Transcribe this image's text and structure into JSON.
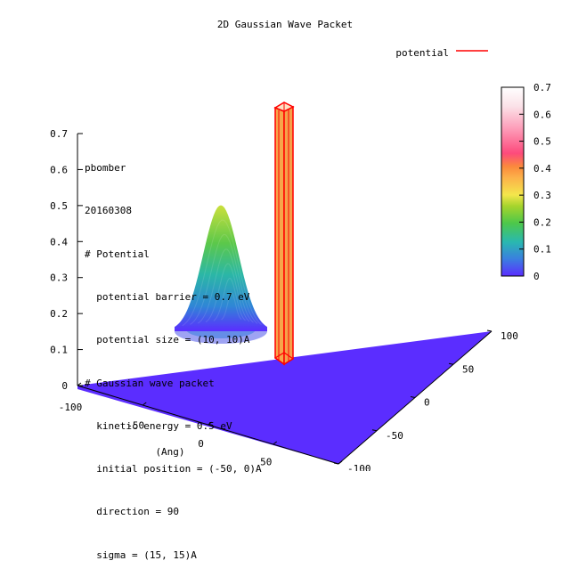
{
  "chart_data": {
    "type": "surface-3d",
    "title": "2D Gaussian Wave Packet",
    "xlabel": "(Ang)",
    "ylabel": "",
    "zlabel": "",
    "xlim": [
      -100,
      100
    ],
    "ylim": [
      -100,
      100
    ],
    "zlim": [
      0,
      0.7
    ],
    "x_ticks": [
      "-100",
      "-50",
      "0",
      "50",
      "100"
    ],
    "y_ticks": [
      "100",
      "50",
      "0",
      "-50",
      "-100"
    ],
    "z_ticks": [
      "0",
      "0.1",
      "0.2",
      "0.3",
      "0.4",
      "0.5",
      "0.6",
      "0.7"
    ],
    "colorbar": {
      "range": [
        0,
        0.7
      ],
      "ticks": [
        "0.7",
        "0.6",
        "0.5",
        "0.4",
        "0.3",
        "0.2",
        "0.1",
        "0"
      ],
      "palette": [
        "#5b2dff",
        "#3a7fe0",
        "#29b8b0",
        "#4dc84a",
        "#a6d42c",
        "#f4e64c",
        "#fcb24a",
        "#fb8a3c",
        "#fd4a7c",
        "#fd9cb8",
        "#fbe2e8",
        "#ffffff"
      ]
    },
    "legend": {
      "label": "potential",
      "color": "#ff0000",
      "position": "top-right"
    },
    "series": [
      {
        "name": "potential",
        "kind": "barrier",
        "height": 0.7,
        "center": [
          0,
          0
        ],
        "size": [
          10,
          10
        ],
        "color": "#ff0000",
        "fill": "#f7a54a"
      },
      {
        "kind": "gaussian",
        "center": [
          -50,
          0
        ],
        "sigma": [
          15,
          15
        ],
        "peak": 0.35,
        "base_color": "#5b2dff"
      }
    ],
    "annotations": [
      "pbomber",
      "20160308",
      "# Potential",
      "  potential barrier = 0.7 eV",
      "  potential size = (10, 10)A",
      "# Gaussian wave packet",
      "  kinetic energy = 0.5 eV",
      "  initial position = (-50, 0)A",
      "  direction = 90",
      "  sigma = (15, 15)A"
    ]
  }
}
